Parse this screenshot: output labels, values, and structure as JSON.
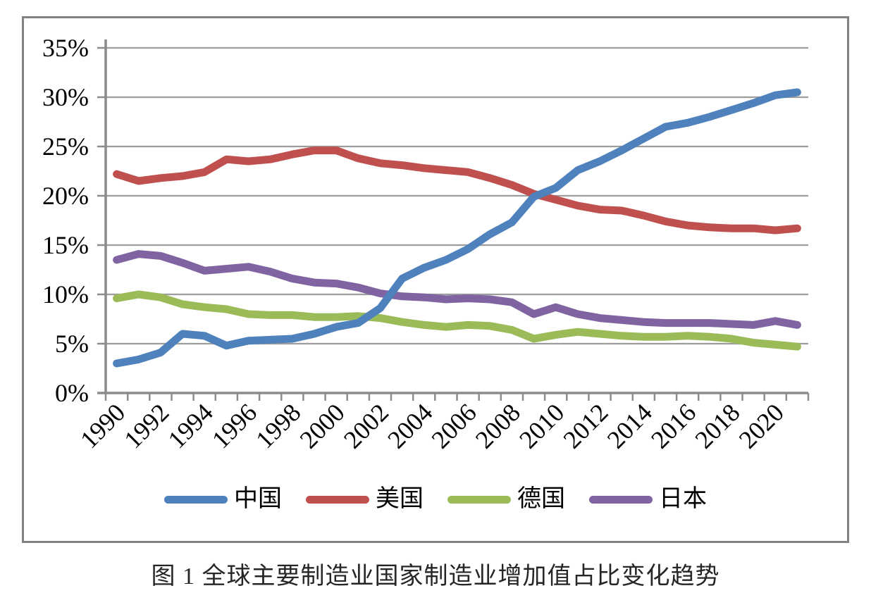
{
  "caption": "图 1  全球主要制造业国家制造业增加值占比变化趋势",
  "colors": {
    "china": "#4F81BD",
    "usa": "#C0504D",
    "germany": "#9BBB59",
    "japan": "#8064A2",
    "gridline": "#9D9D9D",
    "axis": "#8C8C8C",
    "frame_border": "#808080",
    "text": "#000000"
  },
  "chart_data": {
    "type": "line",
    "title": "",
    "caption": "图 1  全球主要制造业国家制造业增加值占比变化趋势",
    "xlabel": "",
    "ylabel": "",
    "grid": true,
    "legend_position": "bottom",
    "ylim": [
      0,
      35
    ],
    "y_ticks": [
      0,
      5,
      10,
      15,
      20,
      25,
      30,
      35
    ],
    "y_tick_labels": [
      "0%",
      "5%",
      "10%",
      "15%",
      "20%",
      "25%",
      "30%",
      "35%"
    ],
    "x": [
      1990,
      1991,
      1992,
      1993,
      1994,
      1995,
      1996,
      1997,
      1998,
      1999,
      2000,
      2001,
      2002,
      2003,
      2004,
      2005,
      2006,
      2007,
      2008,
      2009,
      2010,
      2011,
      2012,
      2013,
      2014,
      2015,
      2016,
      2017,
      2018,
      2019,
      2020,
      2021
    ],
    "x_tick_labels": [
      "1990",
      "1992",
      "1994",
      "1996",
      "1998",
      "2000",
      "2002",
      "2004",
      "2006",
      "2008",
      "2010",
      "2012",
      "2014",
      "2016",
      "2018",
      "2020"
    ],
    "series": [
      {
        "key": "china",
        "name": "中国",
        "color": "#4F81BD",
        "values": [
          3.0,
          3.4,
          4.1,
          6.0,
          5.8,
          4.8,
          5.3,
          5.4,
          5.5,
          6.0,
          6.7,
          7.1,
          8.6,
          11.6,
          12.7,
          13.5,
          14.6,
          16.1,
          17.3,
          19.9,
          20.8,
          22.6,
          23.5,
          24.6,
          25.8,
          27.0,
          27.4,
          28.0,
          28.7,
          29.4,
          30.2,
          30.5
        ]
      },
      {
        "key": "usa",
        "name": "美国",
        "color": "#C0504D",
        "values": [
          22.2,
          21.5,
          21.8,
          22.0,
          22.4,
          23.7,
          23.5,
          23.7,
          24.2,
          24.6,
          24.6,
          23.8,
          23.3,
          23.1,
          22.8,
          22.6,
          22.4,
          21.8,
          21.1,
          20.2,
          19.6,
          19.0,
          18.6,
          18.5,
          18.0,
          17.4,
          17.0,
          16.8,
          16.7,
          16.7,
          16.5,
          16.7
        ]
      },
      {
        "key": "germany",
        "name": "德国",
        "color": "#9BBB59",
        "values": [
          9.6,
          10.0,
          9.7,
          9.0,
          8.7,
          8.5,
          8.0,
          7.9,
          7.9,
          7.7,
          7.7,
          7.8,
          7.6,
          7.2,
          6.9,
          6.7,
          6.9,
          6.8,
          6.4,
          5.5,
          5.9,
          6.2,
          6.0,
          5.8,
          5.7,
          5.7,
          5.8,
          5.7,
          5.5,
          5.1,
          4.9,
          4.7
        ]
      },
      {
        "key": "japan",
        "name": "日本",
        "color": "#8064A2",
        "values": [
          13.5,
          14.1,
          13.9,
          13.2,
          12.4,
          12.6,
          12.8,
          12.3,
          11.6,
          11.2,
          11.1,
          10.7,
          10.1,
          9.8,
          9.7,
          9.5,
          9.6,
          9.5,
          9.2,
          8.0,
          8.7,
          8.0,
          7.6,
          7.4,
          7.2,
          7.1,
          7.1,
          7.1,
          7.0,
          6.9,
          7.3,
          6.9
        ]
      }
    ]
  }
}
